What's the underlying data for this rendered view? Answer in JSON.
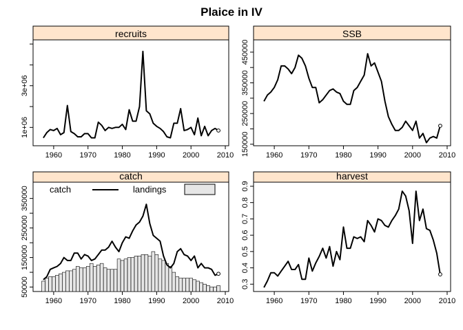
{
  "title": "Plaice in IV",
  "chart_data": [
    {
      "type": "line",
      "panel": "recruits",
      "xlim": [
        1954,
        2011
      ],
      "ylim": [
        120000,
        5200000
      ],
      "x_ticks": [
        1960,
        1970,
        1980,
        1990,
        2000,
        2010
      ],
      "y_ticks": [
        1000000,
        3000000
      ],
      "y_tick_labels": [
        "1e+06",
        "3e+06"
      ],
      "y_unlabeled_ticks": [
        2000000,
        4000000,
        5000000
      ],
      "grid": false,
      "series": [
        {
          "x": [
            1957,
            1958,
            1959,
            1960,
            1961,
            1962,
            1963,
            1964,
            1965,
            1966,
            1967,
            1968,
            1969,
            1970,
            1971,
            1972,
            1973,
            1974,
            1975,
            1976,
            1977,
            1978,
            1979,
            1980,
            1981,
            1982,
            1983,
            1984,
            1985,
            1986,
            1987,
            1988,
            1989,
            1990,
            1991,
            1992,
            1993,
            1994,
            1995,
            1996,
            1997,
            1998,
            1999,
            2000,
            2001,
            2002,
            2003,
            2004,
            2005,
            2006,
            2007,
            2008
          ],
          "y": [
            500000,
            750000,
            900000,
            850000,
            950000,
            650000,
            750000,
            2050000,
            800000,
            700000,
            550000,
            550000,
            700000,
            700000,
            500000,
            500000,
            1250000,
            1100000,
            850000,
            1000000,
            950000,
            1000000,
            1000000,
            1150000,
            900000,
            1850000,
            1300000,
            1300000,
            2000000,
            4650000,
            1800000,
            1650000,
            1200000,
            1050000,
            950000,
            800000,
            550000,
            500000,
            1200000,
            1200000,
            1900000,
            850000,
            900000,
            1000000,
            650000,
            1450000,
            600000,
            1050000,
            600000,
            850000,
            950000,
            850000
          ]
        }
      ]
    },
    {
      "type": "line",
      "panel": "SSB",
      "xlim": [
        1954,
        2011
      ],
      "ylim": [
        145000,
        490000
      ],
      "x_ticks": [
        1960,
        1970,
        1980,
        1990,
        2000,
        2010
      ],
      "y_ticks": [
        150000,
        250000,
        350000,
        450000
      ],
      "y_tick_labels": [
        "150000",
        "250000",
        "350000",
        "450000"
      ],
      "y_unlabeled_ticks": [
        200000,
        300000,
        400000
      ],
      "grid": false,
      "series": [
        {
          "x": [
            1957,
            1958,
            1959,
            1960,
            1961,
            1962,
            1963,
            1964,
            1965,
            1966,
            1967,
            1968,
            1969,
            1970,
            1971,
            1972,
            1973,
            1974,
            1975,
            1976,
            1977,
            1978,
            1979,
            1980,
            1981,
            1982,
            1983,
            1984,
            1985,
            1986,
            1987,
            1988,
            1989,
            1990,
            1991,
            1992,
            1993,
            1994,
            1995,
            1996,
            1997,
            1998,
            1999,
            2000,
            2001,
            2002,
            2003,
            2004,
            2005,
            2006,
            2007,
            2008
          ],
          "y": [
            290000,
            310000,
            320000,
            335000,
            360000,
            405000,
            405000,
            395000,
            380000,
            400000,
            440000,
            430000,
            405000,
            365000,
            335000,
            335000,
            285000,
            295000,
            310000,
            325000,
            330000,
            320000,
            315000,
            290000,
            280000,
            280000,
            325000,
            335000,
            355000,
            375000,
            445000,
            405000,
            415000,
            385000,
            355000,
            290000,
            240000,
            215000,
            195000,
            195000,
            205000,
            225000,
            210000,
            195000,
            225000,
            170000,
            185000,
            155000,
            170000,
            175000,
            170000,
            210000
          ]
        }
      ]
    },
    {
      "type": "bar",
      "panel": "catch",
      "legend": {
        "placement": "top",
        "entries": [
          "catch",
          "landings"
        ]
      },
      "xlim": [
        1954,
        2011
      ],
      "ylim": [
        35000,
        405000
      ],
      "x_ticks": [
        1960,
        1970,
        1980,
        1990,
        2000,
        2010
      ],
      "y_ticks": [
        50000,
        150000,
        250000,
        350000
      ],
      "y_tick_labels": [
        "50000",
        "150000",
        "250000",
        "350000"
      ],
      "y_unlabeled_ticks": [
        100000,
        200000,
        300000
      ],
      "grid": false,
      "series": [
        {
          "name": "catch",
          "type": "line",
          "x": [
            1957,
            1958,
            1959,
            1960,
            1961,
            1962,
            1963,
            1964,
            1965,
            1966,
            1967,
            1968,
            1969,
            1970,
            1971,
            1972,
            1973,
            1974,
            1975,
            1976,
            1977,
            1978,
            1979,
            1980,
            1981,
            1982,
            1983,
            1984,
            1985,
            1986,
            1987,
            1988,
            1989,
            1990,
            1991,
            1992,
            1993,
            1994,
            1995,
            1996,
            1997,
            1998,
            1999,
            2000,
            2001,
            2002,
            2003,
            2004,
            2005,
            2006,
            2007,
            2008
          ],
          "y": [
            75000,
            85000,
            110000,
            115000,
            120000,
            130000,
            150000,
            140000,
            140000,
            165000,
            165000,
            145000,
            160000,
            155000,
            140000,
            145000,
            160000,
            175000,
            175000,
            185000,
            205000,
            185000,
            170000,
            200000,
            220000,
            215000,
            240000,
            260000,
            270000,
            290000,
            330000,
            265000,
            225000,
            215000,
            205000,
            155000,
            125000,
            115000,
            130000,
            170000,
            180000,
            160000,
            155000,
            140000,
            155000,
            115000,
            130000,
            115000,
            115000,
            110000,
            90000,
            95000
          ]
        },
        {
          "name": "landings",
          "type": "bar",
          "x": [
            1957,
            1958,
            1959,
            1960,
            1961,
            1962,
            1963,
            1964,
            1965,
            1966,
            1967,
            1968,
            1969,
            1970,
            1971,
            1972,
            1973,
            1974,
            1975,
            1976,
            1977,
            1978,
            1979,
            1980,
            1981,
            1982,
            1983,
            1984,
            1985,
            1986,
            1987,
            1988,
            1989,
            1990,
            1991,
            1992,
            1993,
            1994,
            1995,
            1996,
            1997,
            1998,
            1999,
            2000,
            2001,
            2002,
            2003,
            2004,
            2005,
            2006,
            2007,
            2008
          ],
          "y": [
            70000,
            80000,
            85000,
            85000,
            90000,
            95000,
            100000,
            105000,
            105000,
            110000,
            120000,
            115000,
            115000,
            120000,
            130000,
            120000,
            125000,
            130000,
            115000,
            110000,
            110000,
            110000,
            145000,
            140000,
            145000,
            150000,
            150000,
            155000,
            155000,
            160000,
            160000,
            155000,
            170000,
            160000,
            145000,
            140000,
            130000,
            120000,
            100000,
            85000,
            80000,
            80000,
            80000,
            80000,
            75000,
            70000,
            65000,
            60000,
            55000,
            50000,
            50000,
            55000
          ]
        }
      ]
    },
    {
      "type": "line",
      "panel": "harvest",
      "xlim": [
        1954,
        2011
      ],
      "ylim": [
        0.255,
        0.925
      ],
      "x_ticks": [
        1960,
        1970,
        1980,
        1990,
        2000,
        2010
      ],
      "y_ticks": [
        0.3,
        0.4,
        0.5,
        0.6,
        0.7,
        0.8,
        0.9
      ],
      "y_tick_labels": [
        "0.3",
        "0.4",
        "0.5",
        "0.6",
        "0.7",
        "0.8",
        "0.9"
      ],
      "grid": false,
      "series": [
        {
          "x": [
            1957,
            1958,
            1959,
            1960,
            1961,
            1962,
            1963,
            1964,
            1965,
            1966,
            1967,
            1968,
            1969,
            1970,
            1971,
            1972,
            1973,
            1974,
            1975,
            1976,
            1977,
            1978,
            1979,
            1980,
            1981,
            1982,
            1983,
            1984,
            1985,
            1986,
            1987,
            1988,
            1989,
            1990,
            1991,
            1992,
            1993,
            1994,
            1995,
            1996,
            1997,
            1998,
            1999,
            2000,
            2001,
            2002,
            2003,
            2004,
            2005,
            2006,
            2007,
            2008
          ],
          "y": [
            0.28,
            0.32,
            0.37,
            0.37,
            0.35,
            0.38,
            0.41,
            0.44,
            0.39,
            0.39,
            0.42,
            0.33,
            0.33,
            0.46,
            0.38,
            0.43,
            0.47,
            0.52,
            0.46,
            0.53,
            0.41,
            0.5,
            0.45,
            0.65,
            0.52,
            0.52,
            0.59,
            0.58,
            0.59,
            0.56,
            0.69,
            0.66,
            0.62,
            0.7,
            0.69,
            0.66,
            0.65,
            0.69,
            0.72,
            0.76,
            0.87,
            0.84,
            0.75,
            0.55,
            0.87,
            0.69,
            0.76,
            0.64,
            0.63,
            0.57,
            0.49,
            0.36
          ]
        }
      ]
    }
  ],
  "colors": {
    "strip_fill": "#ffe5cc",
    "line": "#000000",
    "bar_fill": "#e6e6e6",
    "frame": "#000000"
  }
}
